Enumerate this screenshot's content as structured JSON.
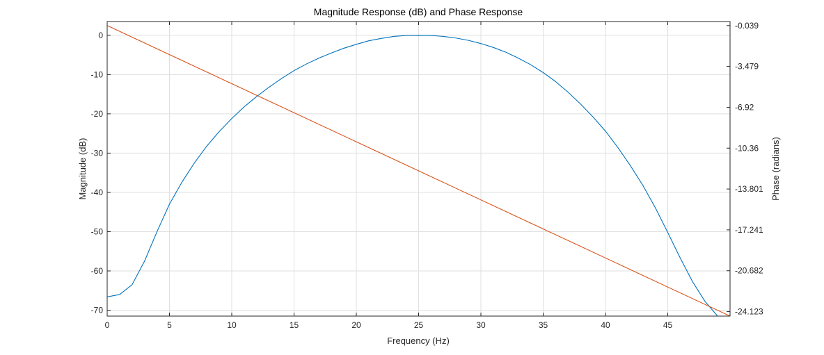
{
  "chart_data": {
    "type": "line",
    "title": "Magnitude Response (dB) and Phase Response",
    "xlabel": "Frequency (Hz)",
    "ylabel": "Magnitude (dB)",
    "ylabel_right": "Phase (radians)",
    "xlim": [
      0,
      50
    ],
    "ylim": [
      -71.5,
      3.5
    ],
    "ylim_right": [
      -24.5,
      0.3
    ],
    "x_ticks": [
      0,
      5,
      10,
      15,
      20,
      25,
      30,
      35,
      40,
      45
    ],
    "y_ticks": [
      0,
      -10,
      -20,
      -30,
      -40,
      -50,
      -60,
      -70
    ],
    "y_right_ticks": [
      -0.039,
      -3.479,
      -6.92,
      -10.36,
      -13.801,
      -17.241,
      -20.682,
      -24.123
    ],
    "y_right_tick_labels": [
      "-0.039",
      "-3.479",
      "-6.92",
      "-10.36",
      "-13.801",
      "-17.241",
      "-20.682",
      "-24.123"
    ],
    "grid": true,
    "series": [
      {
        "axis": "left",
        "color": "#0072BD",
        "x": [
          0,
          1,
          2,
          3,
          4,
          5,
          6,
          7,
          8,
          9,
          10,
          11,
          12,
          13,
          14,
          15,
          16,
          17,
          18,
          19,
          20,
          21,
          22,
          23,
          24,
          25,
          26,
          27,
          28,
          29,
          30,
          31,
          32,
          33,
          34,
          35,
          36,
          37,
          38,
          39,
          40,
          41,
          42,
          43,
          44,
          45,
          46,
          47,
          48,
          49
        ],
        "values": [
          -66.6,
          -66.0,
          -63.5,
          -57.5,
          -50.0,
          -43.0,
          -37.4,
          -32.5,
          -28.2,
          -24.5,
          -21.2,
          -18.2,
          -15.6,
          -13.2,
          -11.0,
          -9.0,
          -7.3,
          -5.8,
          -4.5,
          -3.3,
          -2.3,
          -1.4,
          -0.8,
          -0.3,
          -0.05,
          0.0,
          -0.05,
          -0.3,
          -0.7,
          -1.3,
          -2.1,
          -3.1,
          -4.3,
          -5.8,
          -7.5,
          -9.5,
          -11.8,
          -14.5,
          -17.5,
          -20.8,
          -24.4,
          -28.6,
          -33.2,
          -38.2,
          -43.9,
          -50.2,
          -56.7,
          -62.8,
          -67.8,
          -71.5
        ]
      },
      {
        "axis": "right",
        "color": "#D95319",
        "x": [
          0,
          50
        ],
        "values": [
          -0.039,
          -24.5
        ]
      }
    ]
  }
}
